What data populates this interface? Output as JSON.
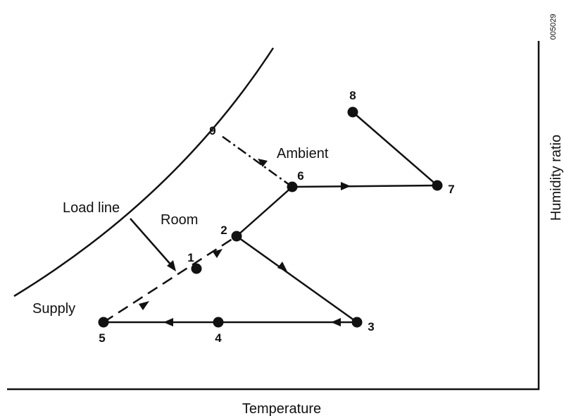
{
  "code": "005029",
  "axes": {
    "x_label": "Temperature",
    "y_label": "Humidity ratio"
  },
  "labels": {
    "load_line": "Load line",
    "room": "Room",
    "ambient": "Ambient",
    "supply": "Supply"
  },
  "nodes": [
    {
      "label": "1"
    },
    {
      "label": "2"
    },
    {
      "label": "3"
    },
    {
      "label": "4"
    },
    {
      "label": "5"
    },
    {
      "label": "6"
    },
    {
      "label": "7"
    },
    {
      "label": "8"
    },
    {
      "label": "9"
    }
  ]
}
